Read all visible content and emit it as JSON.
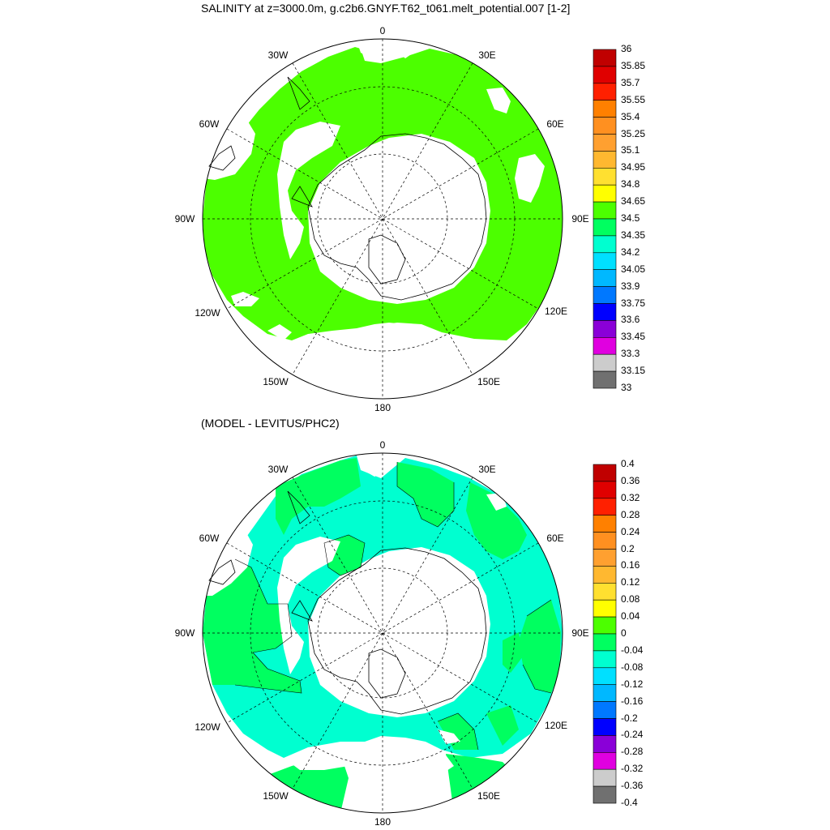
{
  "panels": [
    {
      "title": "SALINITY at z=3000.0m, g.c2b6.GNYF.T62_t061.melt_potential.007 [1-2]",
      "ocean_color": "#4cff00",
      "colorbar": {
        "labels": [
          "36",
          "35.85",
          "35.7",
          "35.55",
          "35.4",
          "35.25",
          "35.1",
          "34.95",
          "34.8",
          "34.65",
          "34.5",
          "34.35",
          "34.2",
          "34.05",
          "33.9",
          "33.75",
          "33.6",
          "33.45",
          "33.3",
          "33.15",
          "33"
        ],
        "colors": [
          "#c00000",
          "#e00000",
          "#ff2000",
          "#ff8000",
          "#ff9020",
          "#ffa030",
          "#ffb830",
          "#ffe030",
          "#ffff00",
          "#4cff00",
          "#00ff60",
          "#00ffd0",
          "#00e0ff",
          "#00b8ff",
          "#0078ff",
          "#0000ff",
          "#8a00d8",
          "#e000e0",
          "#cccccc",
          "#707070"
        ]
      }
    },
    {
      "title": "(MODEL - LEVITUS/PHC2)",
      "colorbar": {
        "labels": [
          "0.4",
          "0.36",
          "0.32",
          "0.28",
          "0.24",
          "0.2",
          "0.16",
          "0.12",
          "0.08",
          "0.04",
          "0",
          "-0.04",
          "-0.08",
          "-0.12",
          "-0.16",
          "-0.2",
          "-0.24",
          "-0.28",
          "-0.32",
          "-0.36",
          "-0.4"
        ],
        "colors": [
          "#c00000",
          "#e00000",
          "#ff2000",
          "#ff8000",
          "#ff9020",
          "#ffa030",
          "#ffb830",
          "#ffe030",
          "#ffff00",
          "#4cff00",
          "#00ff60",
          "#00ffd0",
          "#00e0ff",
          "#00b8ff",
          "#0078ff",
          "#0000ff",
          "#8a00d8",
          "#e000e0",
          "#cccccc",
          "#707070"
        ]
      }
    }
  ],
  "map_labels": [
    "0",
    "30E",
    "60E",
    "90E",
    "120E",
    "150E",
    "180",
    "150W",
    "120W",
    "90W",
    "60W",
    "30W"
  ]
}
